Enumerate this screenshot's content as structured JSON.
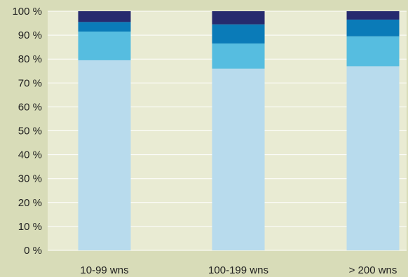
{
  "chart_data": {
    "type": "bar",
    "stacked": true,
    "title": "",
    "xlabel": "",
    "ylabel": "",
    "ylim": [
      0,
      100
    ],
    "yticks": [
      0,
      10,
      20,
      30,
      40,
      50,
      60,
      70,
      80,
      90,
      100
    ],
    "ytick_labels": [
      "0 %",
      "10 %",
      "20 %",
      "30 %",
      "40 %",
      "50 %",
      "60 %",
      "70 %",
      "80 %",
      "90 %",
      "100 %"
    ],
    "categories": [
      "10-99 wns",
      "100-199 wns",
      "> 200 wns"
    ],
    "series": [
      {
        "values": [
          79.5,
          76,
          77
        ],
        "color": "#b8dbed"
      },
      {
        "values": [
          12,
          10.5,
          12.5
        ],
        "color": "#56bde0"
      },
      {
        "values": [
          4,
          8,
          7
        ],
        "color": "#0a7bb8"
      },
      {
        "values": [
          4.5,
          5.5,
          3.5
        ],
        "color": "#262a6e"
      }
    ],
    "grid": true,
    "legend": "none",
    "colors": {
      "background": "#d8dcb8",
      "plot_background": "#e9ebd3",
      "gridline": "#ffffff"
    }
  }
}
